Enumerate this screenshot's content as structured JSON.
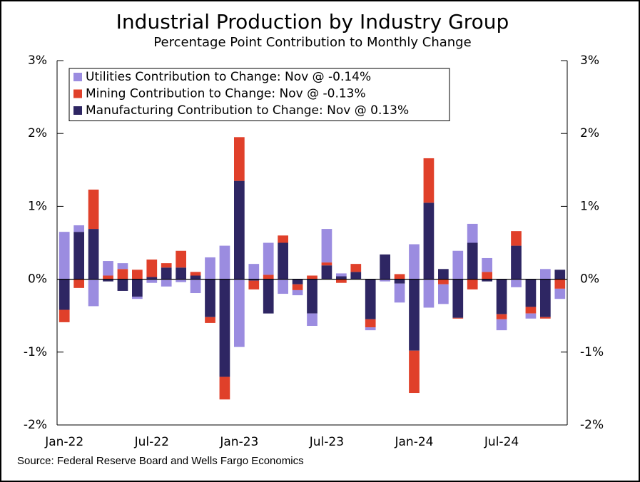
{
  "chart_data": {
    "type": "stacked-bar",
    "title": "Industrial Production by Industry Group",
    "subtitle": "Percentage Point Contribution to Monthly Change",
    "source": "Source: Federal Reserve Board and Wells Fargo Economics",
    "categories": [
      "Jan-22",
      null,
      null,
      null,
      null,
      null,
      "Jul-22",
      null,
      null,
      null,
      null,
      null,
      "Jan-23",
      null,
      null,
      null,
      null,
      null,
      "Jul-23",
      null,
      null,
      null,
      null,
      null,
      "Jan-24",
      null,
      null,
      null,
      null,
      null,
      "Jul-24",
      null,
      null,
      null,
      null
    ],
    "series": [
      {
        "name": "Utilities Contribution to Change: Nov @ -0.14%",
        "color": "#9b8ce0",
        "values": [
          0.65,
          0.09,
          -0.37,
          0.2,
          0.08,
          -0.03,
          -0.05,
          -0.1,
          -0.04,
          -0.19,
          0.3,
          0.46,
          -0.93,
          0.21,
          0.44,
          -0.2,
          -0.07,
          -0.17,
          0.46,
          0.04,
          0,
          -0.04,
          -0.03,
          -0.26,
          0.48,
          -0.39,
          -0.27,
          0.39,
          0.26,
          0.19,
          -0.15,
          -0.11,
          -0.07,
          0.14,
          -0.14
        ]
      },
      {
        "name": "Mining Contribution to Change: Nov @ -0.13%",
        "color": "#e0402a",
        "values": [
          -0.17,
          -0.12,
          0.54,
          0.05,
          0.14,
          0.13,
          0.24,
          0.06,
          0.23,
          0.05,
          -0.08,
          -0.31,
          0.6,
          -0.12,
          0.06,
          0.1,
          -0.08,
          0.05,
          0.04,
          -0.05,
          0.11,
          -0.11,
          0,
          0.07,
          -0.58,
          0.61,
          -0.07,
          -0.01,
          -0.14,
          0.1,
          -0.07,
          0.2,
          -0.09,
          -0.02,
          -0.13
        ]
      },
      {
        "name": "Manufacturing Contribution to Change: Nov @ 0.13%",
        "color": "#2e2663",
        "values": [
          -0.42,
          0.65,
          0.69,
          -0.03,
          -0.16,
          -0.24,
          0.03,
          0.16,
          0.16,
          0.05,
          -0.52,
          -1.34,
          1.35,
          -0.02,
          -0.47,
          0.5,
          -0.07,
          -0.47,
          0.19,
          0.04,
          0.1,
          -0.55,
          0.34,
          -0.06,
          -0.98,
          1.05,
          0.14,
          -0.53,
          0.5,
          -0.03,
          -0.48,
          0.46,
          -0.38,
          -0.52,
          0.13
        ]
      }
    ],
    "ylim": [
      -2,
      3
    ],
    "yticks": [
      {
        "value": -2,
        "label": "-2%"
      },
      {
        "value": -1,
        "label": "-1%"
      },
      {
        "value": 0,
        "label": "0%"
      },
      {
        "value": 1,
        "label": "1%"
      },
      {
        "value": 2,
        "label": "2%"
      },
      {
        "value": 3,
        "label": "3%"
      }
    ],
    "y2lim": [
      -2,
      3
    ],
    "y2ticks": [
      {
        "value": -2,
        "label": "-2%"
      },
      {
        "value": -1,
        "label": "-1%"
      },
      {
        "value": 0,
        "label": "0%"
      },
      {
        "value": 1,
        "label": "1%"
      },
      {
        "value": 2,
        "label": "2%"
      },
      {
        "value": 3,
        "label": "3%"
      }
    ],
    "legend": "upper left"
  }
}
